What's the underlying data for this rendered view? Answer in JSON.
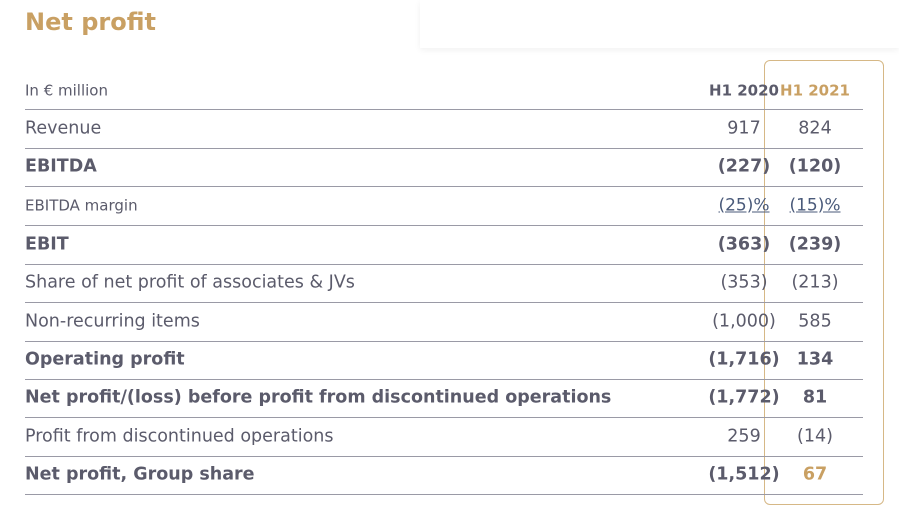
{
  "title": "Net profit",
  "table": {
    "header": [
      "In € million",
      "H1 2020",
      "H1 2021"
    ],
    "rows": [
      [
        "Revenue",
        "917",
        "824"
      ],
      [
        "EBITDA",
        "(227)",
        "(120)"
      ],
      [
        "EBITDA margin",
        "(25)%",
        "(15)%"
      ],
      [
        "EBIT",
        "(363)",
        "(239)"
      ],
      [
        "Share of net profit of associates & JVs",
        "(353)",
        "(213)"
      ],
      [
        "Non-recurring items",
        "(1,000)",
        "585"
      ],
      [
        "Operating profit",
        "(1,716)",
        "134"
      ],
      [
        "Net profit/(loss) before profit from discontinued operations",
        "(1,772)",
        "81"
      ],
      [
        "Profit from discontinued operations",
        "259",
        "(14)"
      ],
      [
        "Net profit, Group share",
        "(1,512)",
        "67"
      ]
    ]
  }
}
